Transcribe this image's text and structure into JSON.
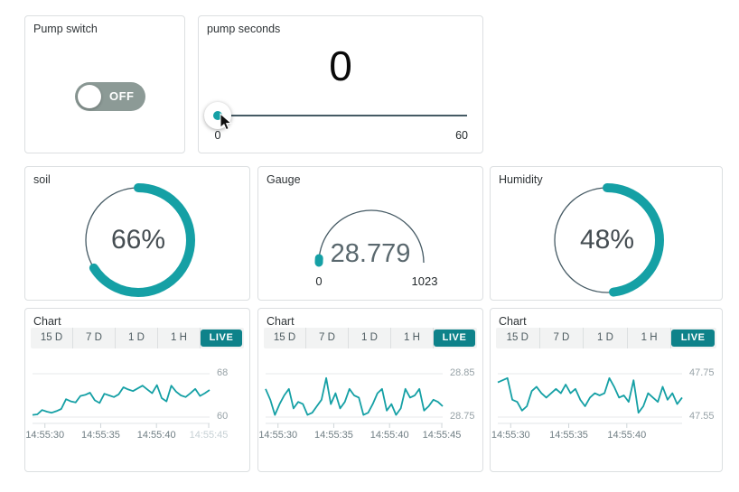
{
  "pump_switch": {
    "title": "Pump switch",
    "state_label": "OFF",
    "state": "off"
  },
  "pump_seconds": {
    "title": "pump seconds",
    "value": "0",
    "min_label": "0",
    "max_label": "60",
    "slider_value": 0,
    "slider_min": 0,
    "slider_max": 60
  },
  "soil": {
    "title": "soil",
    "value_label": "66%",
    "percent": 66
  },
  "gauge": {
    "title": "Gauge",
    "value_label": "28.779",
    "value": 28.779,
    "min": 0,
    "max": 1023,
    "min_label": "0",
    "max_label": "1023"
  },
  "humidity": {
    "title": "Humidity",
    "value_label": "48%",
    "percent": 48
  },
  "chart_buttons": {
    "labels": [
      "15 D",
      "7 D",
      "1 D",
      "1 H",
      "LIVE"
    ],
    "active": "LIVE"
  },
  "chart_data": [
    {
      "type": "line",
      "title": "Chart",
      "x_tick_labels": [
        "14:55:30",
        "14:55:35",
        "14:55:40",
        "14:55:45"
      ],
      "muted_last_x_label": true,
      "ylim": [
        60,
        68
      ],
      "y_grid_labels": [
        "68",
        "60"
      ],
      "legend": null,
      "grid": true,
      "values": [
        60.4,
        60.5,
        61.3,
        61.0,
        60.8,
        61.1,
        61.5,
        63.3,
        62.9,
        62.7,
        63.9,
        64.1,
        64.5,
        63.1,
        62.6,
        64.3,
        64.0,
        63.7,
        64.2,
        65.5,
        65.1,
        64.8,
        65.3,
        65.8,
        65.1,
        64.4,
        65.9,
        63.5,
        62.9,
        65.8,
        64.7,
        64.0,
        63.7,
        64.4,
        65.2,
        63.9,
        64.4,
        65.0
      ]
    },
    {
      "type": "line",
      "title": "Chart",
      "x_tick_labels": [
        "14:55:30",
        "14:55:35",
        "14:55:40",
        "14:55:45"
      ],
      "muted_last_x_label": false,
      "ylim": [
        28.75,
        28.85
      ],
      "y_grid_labels": [
        "28.85",
        "28.75"
      ],
      "legend": null,
      "grid": true,
      "values": [
        28.815,
        28.79,
        28.755,
        28.78,
        28.8,
        28.815,
        28.77,
        28.785,
        28.78,
        28.755,
        28.76,
        28.775,
        28.79,
        28.84,
        28.78,
        28.805,
        28.77,
        28.785,
        28.815,
        28.8,
        28.795,
        28.755,
        28.76,
        28.78,
        28.805,
        28.815,
        28.765,
        28.78,
        28.755,
        28.77,
        28.815,
        28.795,
        28.8,
        28.815,
        28.765,
        28.775,
        28.79,
        28.785,
        28.775
      ]
    },
    {
      "type": "line",
      "title": "Chart",
      "x_tick_labels": [
        "14:55:30",
        "14:55:35",
        "14:55:40"
      ],
      "muted_last_x_label": false,
      "ylim": [
        47.55,
        47.75
      ],
      "y_grid_labels": [
        "47.75",
        "47.55"
      ],
      "legend": null,
      "grid": true,
      "values": [
        47.71,
        47.72,
        47.73,
        47.63,
        47.62,
        47.58,
        47.6,
        47.67,
        47.69,
        47.66,
        47.64,
        47.66,
        47.68,
        47.66,
        47.7,
        47.66,
        47.68,
        47.63,
        47.6,
        47.64,
        47.66,
        47.65,
        47.66,
        47.73,
        47.69,
        47.64,
        47.65,
        47.62,
        47.72,
        47.57,
        47.6,
        47.66,
        47.64,
        47.62,
        47.69,
        47.63,
        47.66,
        47.61,
        47.64
      ]
    }
  ],
  "colors": {
    "accent_teal": "#15a0a5",
    "live_button_bg": "#0e828a",
    "toggle_bg": "#8c9a96",
    "slider_track": "#455a64",
    "gauge_track": "#455a64",
    "gridline": "#e7eaeb",
    "muted_label": "#c6d0d4"
  }
}
